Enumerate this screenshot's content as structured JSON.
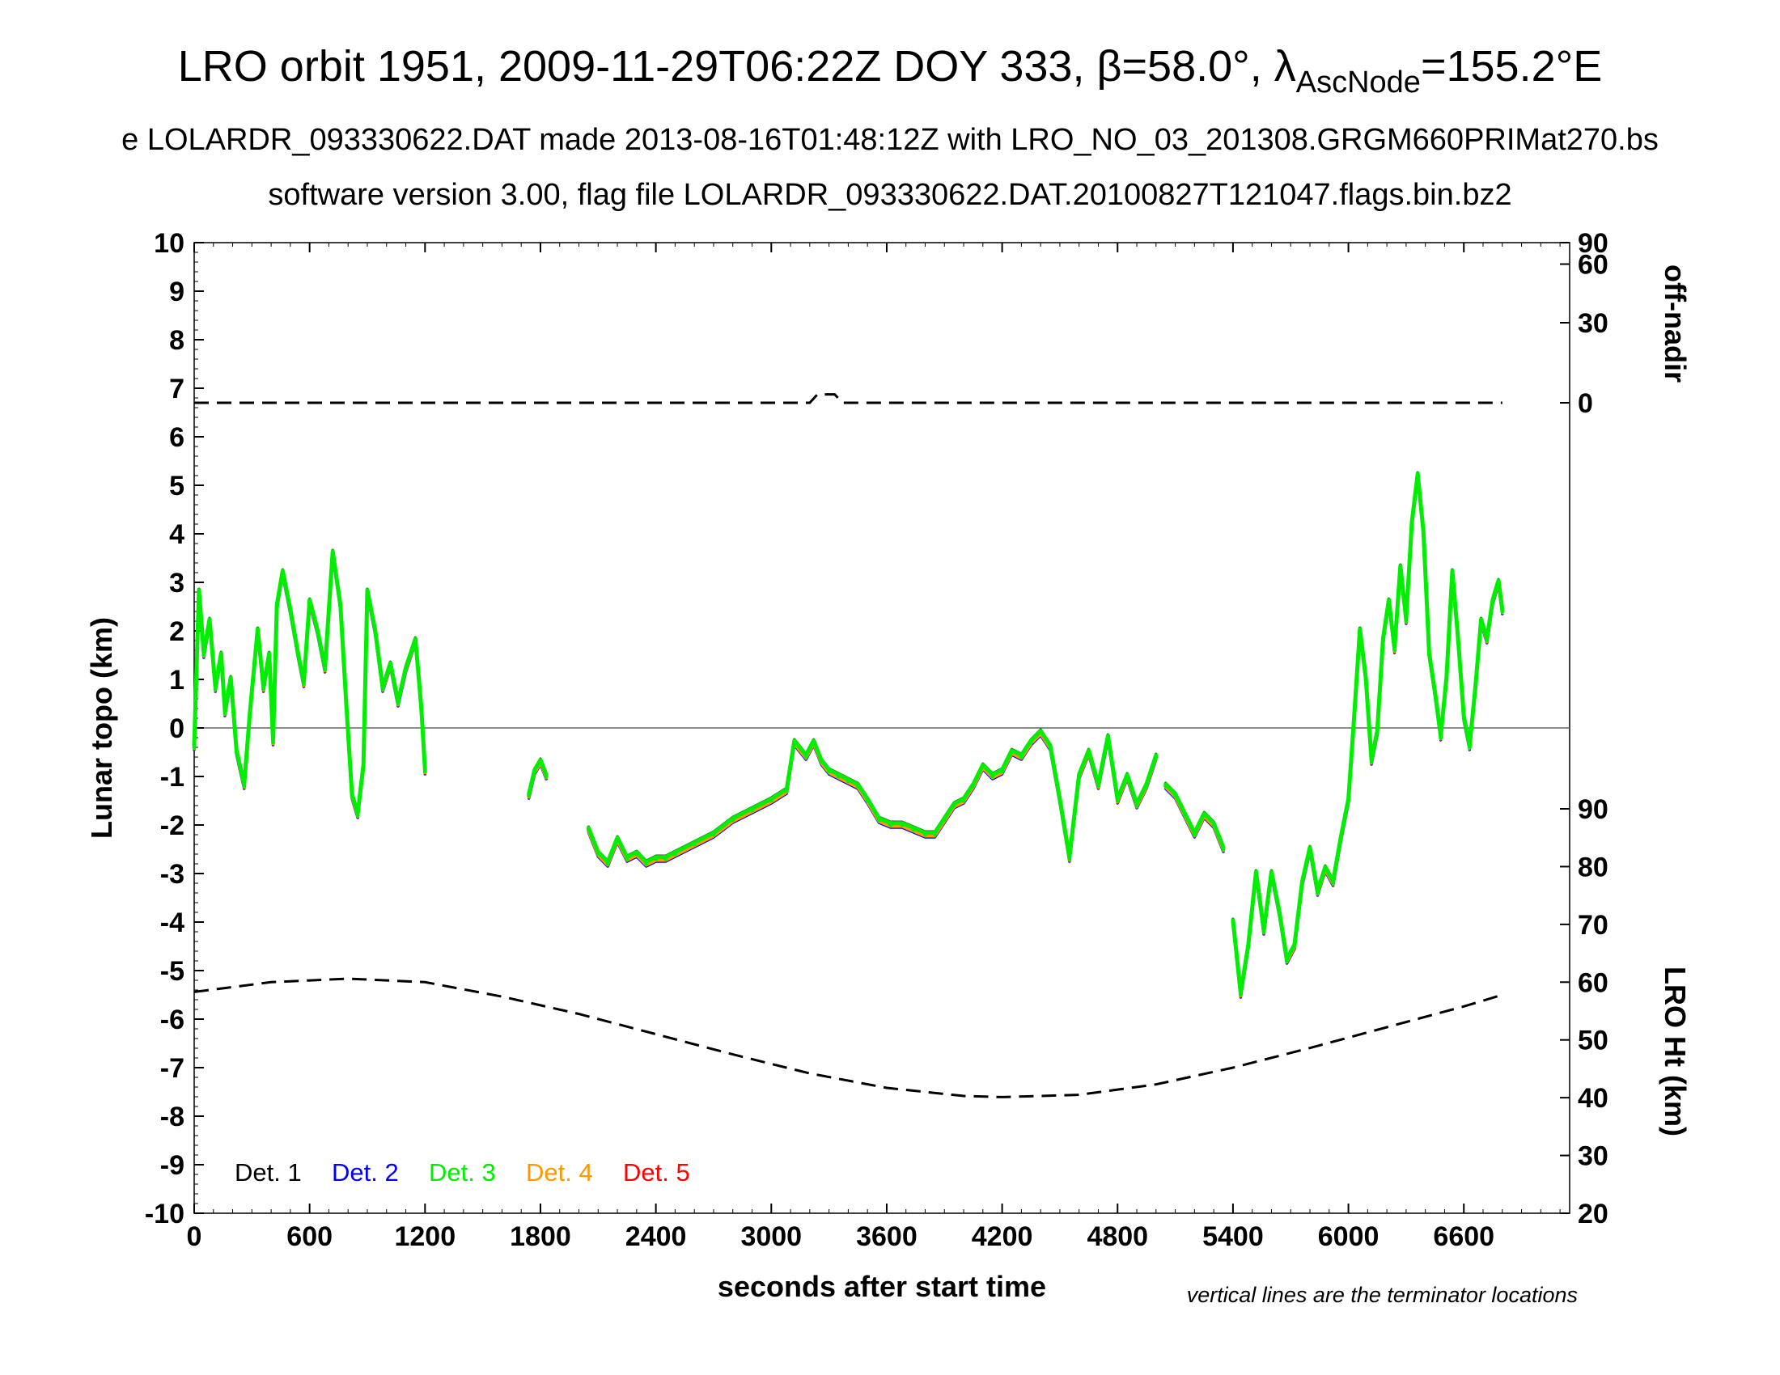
{
  "title": {
    "line1_prefix": "LRO orbit 1951, 2009-11-29T06:22Z DOY 333, β=58.0°, λ",
    "line1_sub": "AscNode",
    "line1_suffix": "=155.2°E",
    "line2": "e LOLARDR_093330622.DAT made 2013-08-16T01:48:12Z with LRO_NO_03_201308.GRGM660PRIMat270.bs",
    "line3": "software version 3.00, flag file LOLARDR_093330622.DAT.20100827T121047.flags.bin.bz2"
  },
  "note": "vertical lines are the terminator locations",
  "chart_data": {
    "type": "scatter",
    "xlabel": "seconds after start time",
    "ylabel": "Lunar topo (km)",
    "y2label_top": "off-nadir",
    "y2label_bottom": "LRO Ht (km)",
    "xlim": [
      0,
      7150
    ],
    "ylim": [
      -10,
      10
    ],
    "grid": false,
    "legend_position": "bottom-left",
    "x_ticks": [
      "0",
      "600",
      "1200",
      "1800",
      "2400",
      "3000",
      "3600",
      "4200",
      "4800",
      "5400",
      "6000",
      "6600"
    ],
    "y_ticks": [
      "10",
      "9",
      "8",
      "7",
      "6",
      "5",
      "4",
      "3",
      "2",
      "1",
      "0",
      "-1",
      "-2",
      "-3",
      "-4",
      "-5",
      "-6",
      "-7",
      "-8",
      "-9",
      "-10"
    ],
    "offnadir_ticks": [
      "90",
      "60",
      "30",
      "0"
    ],
    "height_ticks": [
      "90",
      "80",
      "70",
      "60",
      "50",
      "40",
      "30",
      "20"
    ],
    "height_ylim": [
      20,
      90
    ],
    "legend": [
      {
        "label": "Det. 1",
        "color": "#000000"
      },
      {
        "label": "Det. 2",
        "color": "#0000ff"
      },
      {
        "label": "Det. 3",
        "color": "#00ee00"
      },
      {
        "label": "Det. 4",
        "color": "#ff9900"
      },
      {
        "label": "Det. 5",
        "color": "#ff0000"
      }
    ],
    "series": [
      {
        "name": "Lunar topo",
        "segments": [
          [
            [
              0,
              -0.4
            ],
            [
              25,
              2.8
            ],
            [
              50,
              1.5
            ],
            [
              80,
              2.2
            ],
            [
              110,
              0.8
            ],
            [
              140,
              1.5
            ],
            [
              160,
              0.3
            ],
            [
              190,
              1.0
            ],
            [
              220,
              -0.5
            ],
            [
              260,
              -1.2
            ],
            [
              290,
              0.3
            ],
            [
              330,
              2.0
            ],
            [
              360,
              0.8
            ],
            [
              390,
              1.5
            ],
            [
              410,
              -0.3
            ],
            [
              430,
              2.5
            ],
            [
              460,
              3.2
            ],
            [
              500,
              2.4
            ],
            [
              540,
              1.5
            ],
            [
              570,
              0.9
            ],
            [
              600,
              2.6
            ],
            [
              640,
              2.0
            ],
            [
              680,
              1.2
            ],
            [
              720,
              3.6
            ],
            [
              760,
              2.5
            ],
            [
              790,
              0.5
            ],
            [
              820,
              -1.4
            ],
            [
              850,
              -1.8
            ],
            [
              880,
              -0.8
            ],
            [
              900,
              2.8
            ],
            [
              940,
              2.0
            ],
            [
              980,
              0.8
            ],
            [
              1020,
              1.3
            ],
            [
              1060,
              0.5
            ],
            [
              1100,
              1.2
            ],
            [
              1150,
              1.8
            ],
            [
              1180,
              0.4
            ],
            [
              1200,
              -0.9
            ]
          ],
          [
            [
              1740,
              -1.4
            ],
            [
              1770,
              -0.9
            ],
            [
              1800,
              -0.7
            ],
            [
              1830,
              -1.0
            ]
          ],
          [
            [
              2050,
              -2.1
            ],
            [
              2100,
              -2.6
            ],
            [
              2150,
              -2.8
            ],
            [
              2200,
              -2.3
            ],
            [
              2250,
              -2.7
            ],
            [
              2300,
              -2.6
            ],
            [
              2350,
              -2.8
            ],
            [
              2400,
              -2.7
            ],
            [
              2450,
              -2.7
            ],
            [
              2500,
              -2.6
            ],
            [
              2600,
              -2.4
            ],
            [
              2700,
              -2.2
            ],
            [
              2800,
              -1.9
            ],
            [
              2900,
              -1.7
            ],
            [
              3000,
              -1.5
            ],
            [
              3080,
              -1.3
            ],
            [
              3120,
              -0.3
            ],
            [
              3180,
              -0.6
            ],
            [
              3220,
              -0.3
            ],
            [
              3260,
              -0.7
            ],
            [
              3300,
              -0.9
            ],
            [
              3350,
              -1.0
            ],
            [
              3400,
              -1.1
            ],
            [
              3450,
              -1.2
            ],
            [
              3500,
              -1.5
            ],
            [
              3560,
              -1.9
            ],
            [
              3620,
              -2.0
            ],
            [
              3680,
              -2.0
            ],
            [
              3740,
              -2.1
            ],
            [
              3800,
              -2.2
            ],
            [
              3850,
              -2.2
            ],
            [
              3900,
              -1.9
            ],
            [
              3950,
              -1.6
            ],
            [
              4000,
              -1.5
            ],
            [
              4050,
              -1.2
            ],
            [
              4100,
              -0.8
            ],
            [
              4150,
              -1.0
            ],
            [
              4200,
              -0.9
            ],
            [
              4250,
              -0.5
            ],
            [
              4300,
              -0.6
            ],
            [
              4350,
              -0.3
            ],
            [
              4400,
              -0.1
            ],
            [
              4450,
              -0.4
            ],
            [
              4500,
              -1.5
            ],
            [
              4550,
              -2.7
            ],
            [
              4600,
              -1.0
            ],
            [
              4650,
              -0.5
            ],
            [
              4700,
              -1.2
            ],
            [
              4750,
              -0.2
            ],
            [
              4800,
              -1.5
            ],
            [
              4850,
              -1.0
            ],
            [
              4900,
              -1.6
            ],
            [
              4950,
              -1.2
            ],
            [
              5000,
              -0.6
            ]
          ],
          [
            [
              5050,
              -1.2
            ],
            [
              5100,
              -1.4
            ],
            [
              5150,
              -1.8
            ],
            [
              5200,
              -2.2
            ],
            [
              5250,
              -1.8
            ],
            [
              5300,
              -2.0
            ],
            [
              5350,
              -2.5
            ]
          ],
          [
            [
              5400,
              -4.0
            ],
            [
              5440,
              -5.5
            ],
            [
              5480,
              -4.5
            ],
            [
              5520,
              -3.0
            ],
            [
              5560,
              -4.2
            ],
            [
              5600,
              -3.0
            ],
            [
              5640,
              -3.8
            ],
            [
              5680,
              -4.8
            ],
            [
              5720,
              -4.5
            ],
            [
              5760,
              -3.2
            ],
            [
              5800,
              -2.5
            ],
            [
              5840,
              -3.4
            ],
            [
              5880,
              -2.9
            ],
            [
              5920,
              -3.2
            ],
            [
              5960,
              -2.3
            ],
            [
              6000,
              -1.5
            ],
            [
              6030,
              0.2
            ],
            [
              6060,
              2.0
            ],
            [
              6090,
              1.0
            ],
            [
              6120,
              -0.7
            ],
            [
              6150,
              -0.1
            ],
            [
              6180,
              1.8
            ],
            [
              6210,
              2.6
            ],
            [
              6240,
              1.6
            ],
            [
              6270,
              3.3
            ],
            [
              6300,
              2.2
            ],
            [
              6330,
              4.2
            ],
            [
              6360,
              5.2
            ],
            [
              6390,
              4.0
            ],
            [
              6420,
              1.5
            ],
            [
              6450,
              0.7
            ],
            [
              6480,
              -0.2
            ],
            [
              6510,
              1.0
            ],
            [
              6540,
              3.2
            ],
            [
              6570,
              1.8
            ],
            [
              6600,
              0.2
            ],
            [
              6630,
              -0.4
            ],
            [
              6660,
              0.8
            ],
            [
              6690,
              2.2
            ],
            [
              6720,
              1.8
            ],
            [
              6750,
              2.6
            ],
            [
              6780,
              3.0
            ],
            [
              6800,
              2.4
            ]
          ]
        ]
      },
      {
        "name": "off-nadir",
        "points": [
          [
            0,
            0
          ],
          [
            3200,
            0
          ],
          [
            3240,
            3
          ],
          [
            3330,
            3
          ],
          [
            3370,
            0
          ],
          [
            6800,
            0
          ]
        ]
      },
      {
        "name": "LRO Ht",
        "points": [
          [
            0,
            58.3
          ],
          [
            400,
            60.0
          ],
          [
            800,
            60.6
          ],
          [
            1200,
            60.0
          ],
          [
            1600,
            57.5
          ],
          [
            2000,
            54.5
          ],
          [
            2400,
            51.0
          ],
          [
            2800,
            47.5
          ],
          [
            3200,
            44.2
          ],
          [
            3600,
            41.7
          ],
          [
            4000,
            40.3
          ],
          [
            4200,
            40.1
          ],
          [
            4600,
            40.5
          ],
          [
            5000,
            42.3
          ],
          [
            5400,
            45.2
          ],
          [
            5800,
            48.6
          ],
          [
            6200,
            52.2
          ],
          [
            6600,
            55.8
          ],
          [
            6800,
            57.8
          ]
        ]
      }
    ]
  }
}
